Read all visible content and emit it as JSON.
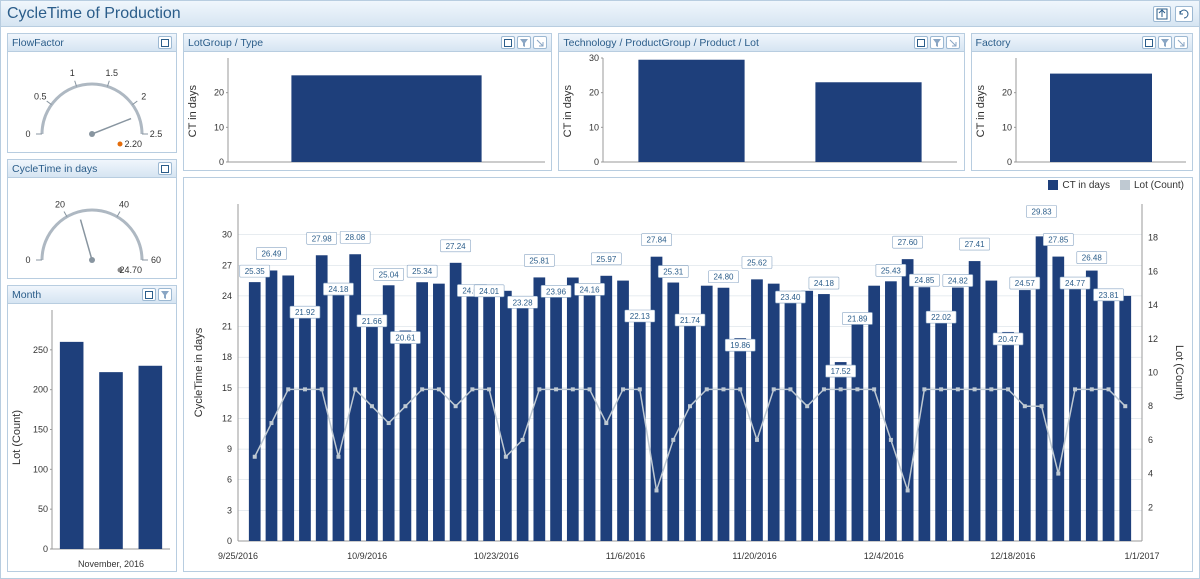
{
  "colors": {
    "primary": "#1e3f7b",
    "panel_border": "#b8cde0",
    "grid": "#cfd9e2",
    "bg": "#ffffff",
    "lot_line": "#bfc9d2",
    "gauge_needle_warn": "#e46c0a"
  },
  "title": "CycleTime of Production",
  "flowFactor": {
    "title": "FlowFactor",
    "min": 0,
    "max": 2.5,
    "value": 2.2,
    "ticks": [
      0,
      0.5,
      1,
      1.5,
      2,
      2.5
    ],
    "valueLabel": "2.20"
  },
  "cycleTimeGauge": {
    "title": "CycleTime in days",
    "min": 0,
    "max": 60,
    "value": 24.7,
    "ticks": [
      0,
      20,
      40,
      60
    ],
    "valueLabel": "24.70"
  },
  "month": {
    "title": "Month",
    "y_label": "Lot (Count)",
    "x_label": "November, 2016",
    "y_max": 300,
    "y_ticks": [
      0,
      50,
      100,
      150,
      200,
      250
    ],
    "bars": [
      260,
      222,
      230
    ]
  },
  "lotgroup": {
    "title": "LotGroup / Type",
    "y_label": "CT in days",
    "y_max": 30,
    "y_ticks": [
      0,
      10,
      20
    ],
    "bars": [
      25
    ]
  },
  "technology": {
    "title": "Technology / ProductGroup / Product / Lot",
    "y_label": "CT in days",
    "y_max": 30,
    "y_ticks": [
      0,
      10,
      20,
      30
    ],
    "bars": [
      29.5,
      23
    ]
  },
  "factory": {
    "title": "Factory",
    "y_label": "CT in days",
    "y_max": 30,
    "y_ticks": [
      0,
      10,
      20
    ],
    "bars": [
      25.5
    ]
  },
  "main": {
    "legend": {
      "ct": "CT in days",
      "lot": "Lot (Count)"
    },
    "y1_label": "CycleTime in days",
    "y2_label": "Lot (Count)",
    "y1_max": 33,
    "y1_ticks": [
      0,
      3,
      6,
      9,
      12,
      15,
      18,
      21,
      24,
      27,
      30
    ],
    "y2_max": 20,
    "y2_ticks": [
      2,
      4,
      6,
      8,
      10,
      12,
      14,
      16,
      18
    ],
    "x_labels": [
      "9/25/2016",
      "10/9/2016",
      "10/23/2016",
      "11/6/2016",
      "11/20/2016",
      "12/4/2016",
      "12/18/2016",
      "1/1/2017"
    ],
    "bars_ct": [
      25.35,
      26.49,
      26.0,
      21.92,
      27.98,
      24.18,
      28.08,
      21.66,
      25.04,
      20.61,
      25.34,
      25.2,
      27.24,
      24.04,
      24.01,
      24.5,
      23.28,
      25.81,
      23.96,
      25.8,
      24.16,
      25.97,
      25.5,
      22.13,
      27.84,
      25.31,
      21.74,
      25.0,
      24.8,
      19.86,
      25.62,
      25.2,
      23.4,
      24.5,
      24.18,
      17.52,
      21.89,
      25.0,
      25.43,
      27.6,
      24.85,
      22.02,
      24.82,
      27.41,
      25.5,
      20.47,
      24.57,
      29.83,
      27.85,
      24.77,
      26.48,
      23.81,
      24.0
    ],
    "labels": [
      {
        "i": 0,
        "t": "25.35",
        "y": 0
      },
      {
        "i": 1,
        "t": "26.49",
        "y": -6
      },
      {
        "i": 3,
        "t": "21.92",
        "y": 6
      },
      {
        "i": 4,
        "t": "27.98",
        "y": -6
      },
      {
        "i": 5,
        "t": "24.18",
        "y": 6
      },
      {
        "i": 6,
        "t": "28.08",
        "y": -6
      },
      {
        "i": 7,
        "t": "21.66",
        "y": 12
      },
      {
        "i": 8,
        "t": "25.04",
        "y": 0
      },
      {
        "i": 9,
        "t": "20.61",
        "y": 18
      },
      {
        "i": 10,
        "t": "25.34",
        "y": 0
      },
      {
        "i": 12,
        "t": "27.24",
        "y": -6
      },
      {
        "i": 13,
        "t": "24.04",
        "y": 6
      },
      {
        "i": 14,
        "t": "24.01",
        "y": 6
      },
      {
        "i": 16,
        "t": "23.28",
        "y": 10
      },
      {
        "i": 17,
        "t": "25.81",
        "y": -6
      },
      {
        "i": 18,
        "t": "23.96",
        "y": 6
      },
      {
        "i": 20,
        "t": "24.16",
        "y": 6
      },
      {
        "i": 21,
        "t": "25.97",
        "y": -6
      },
      {
        "i": 23,
        "t": "22.13",
        "y": 12
      },
      {
        "i": 24,
        "t": "27.84",
        "y": -6
      },
      {
        "i": 25,
        "t": "25.31",
        "y": 0
      },
      {
        "i": 26,
        "t": "21.74",
        "y": 12
      },
      {
        "i": 28,
        "t": "24.80",
        "y": 0
      },
      {
        "i": 29,
        "t": "19.86",
        "y": 18
      },
      {
        "i": 30,
        "t": "25.62",
        "y": -6
      },
      {
        "i": 32,
        "t": "23.40",
        "y": 6
      },
      {
        "i": 34,
        "t": "24.18",
        "y": 0
      },
      {
        "i": 35,
        "t": "17.52",
        "y": 20
      },
      {
        "i": 36,
        "t": "21.89",
        "y": 12
      },
      {
        "i": 38,
        "t": "25.43",
        "y": 0
      },
      {
        "i": 39,
        "t": "27.60",
        "y": -6
      },
      {
        "i": 40,
        "t": "24.85",
        "y": 4
      },
      {
        "i": 41,
        "t": "22.02",
        "y": 12
      },
      {
        "i": 42,
        "t": "24.82",
        "y": 4
      },
      {
        "i": 43,
        "t": "27.41",
        "y": -6
      },
      {
        "i": 45,
        "t": "20.47",
        "y": 18
      },
      {
        "i": 46,
        "t": "24.57",
        "y": 4
      },
      {
        "i": 47,
        "t": "29.83",
        "y": -14
      },
      {
        "i": 48,
        "t": "27.85",
        "y": -6
      },
      {
        "i": 49,
        "t": "24.77",
        "y": 6
      },
      {
        "i": 50,
        "t": "26.48",
        "y": -2
      },
      {
        "i": 51,
        "t": "23.81",
        "y": 8
      }
    ],
    "lot_counts": [
      5,
      7,
      9,
      9,
      9,
      5,
      9,
      8,
      7,
      8,
      9,
      9,
      8,
      9,
      9,
      5,
      6,
      9,
      9,
      9,
      9,
      7,
      9,
      9,
      3,
      6,
      8,
      9,
      9,
      9,
      6,
      9,
      9,
      8,
      9,
      9,
      9,
      9,
      6,
      3,
      9,
      9,
      9,
      9,
      9,
      9,
      8,
      8,
      4,
      9,
      9,
      9,
      8
    ]
  }
}
